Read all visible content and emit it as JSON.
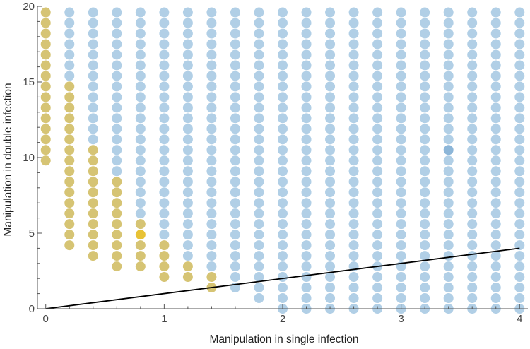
{
  "chart_data": {
    "type": "scatter",
    "title": "",
    "xlabel": "Manipulation in single infection",
    "ylabel": "Manipulation in double infection",
    "xlim": [
      -0.07,
      4.07
    ],
    "ylim": [
      0,
      20
    ],
    "xticks": [
      0,
      1,
      2,
      3,
      4
    ],
    "yticks": [
      0,
      5,
      10,
      15,
      20
    ],
    "grid": false,
    "legend": "none",
    "grid_x_values": [
      0,
      0.2,
      0.4,
      0.6,
      0.8,
      1.0,
      1.2,
      1.4,
      1.6,
      1.8,
      2.0,
      2.2,
      2.4,
      2.6,
      2.8,
      3.0,
      3.2,
      3.4,
      3.6,
      3.8,
      4.0
    ],
    "y_step": 0.7,
    "y_max": 19.6,
    "colors": {
      "yellow": "#d6c474",
      "blue": "#b1cfe6",
      "highlight_yellow": "#e8c235",
      "highlight_blue": "#8db6d8",
      "line": "#000000",
      "axis": "#555555"
    },
    "series": [
      {
        "color_key": "yellow",
        "columns": [
          {
            "x": 0.0,
            "y_min": 9.8
          },
          {
            "x": 0.2,
            "y_min": 4.2,
            "y_max": 14.7
          },
          {
            "x": 0.4,
            "y_min": 3.5,
            "y_max": 10.5
          },
          {
            "x": 0.6,
            "y_min": 2.8,
            "y_max": 8.4
          },
          {
            "x": 0.8,
            "y_min": 2.8,
            "y_max": 5.6
          },
          {
            "x": 1.0,
            "y_min": 2.1,
            "y_max": 4.2
          },
          {
            "x": 1.2,
            "y_min": 2.1,
            "y_max": 2.8
          },
          {
            "x": 1.4,
            "y_min": 1.4,
            "y_max": 2.1
          }
        ]
      },
      {
        "color_key": "blue",
        "columns": [
          {
            "x": 0.2,
            "y_min": 15.4
          },
          {
            "x": 0.4,
            "y_min": 11.2
          },
          {
            "x": 0.6,
            "y_min": 9.1
          },
          {
            "x": 0.8,
            "y_min": 6.3
          },
          {
            "x": 1.0,
            "y_min": 4.9
          },
          {
            "x": 1.2,
            "y_min": 3.5
          },
          {
            "x": 1.4,
            "y_min": 2.8
          },
          {
            "x": 1.6,
            "y_min": 1.4
          },
          {
            "x": 1.8,
            "y_min": 0.7
          },
          {
            "x": 2.0,
            "y_min": 0.0
          },
          {
            "x": 2.2,
            "y_min": 0.0
          },
          {
            "x": 2.4,
            "y_min": 0.0
          },
          {
            "x": 2.6,
            "y_min": 0.0
          },
          {
            "x": 2.8,
            "y_min": 0.0
          },
          {
            "x": 3.0,
            "y_min": 0.0
          },
          {
            "x": 3.2,
            "y_min": 0.0
          },
          {
            "x": 3.4,
            "y_min": 0.0
          },
          {
            "x": 3.6,
            "y_min": 0.0
          },
          {
            "x": 3.8,
            "y_min": 0.0
          },
          {
            "x": 4.0,
            "y_min": 0.0
          }
        ]
      }
    ],
    "highlights": [
      {
        "x": 0.8,
        "y": 4.9,
        "color_key": "highlight_yellow"
      },
      {
        "x": 3.4,
        "y": 10.5,
        "color_key": "highlight_blue"
      }
    ],
    "line": {
      "x": [
        0,
        4
      ],
      "y": [
        0,
        4
      ]
    }
  }
}
